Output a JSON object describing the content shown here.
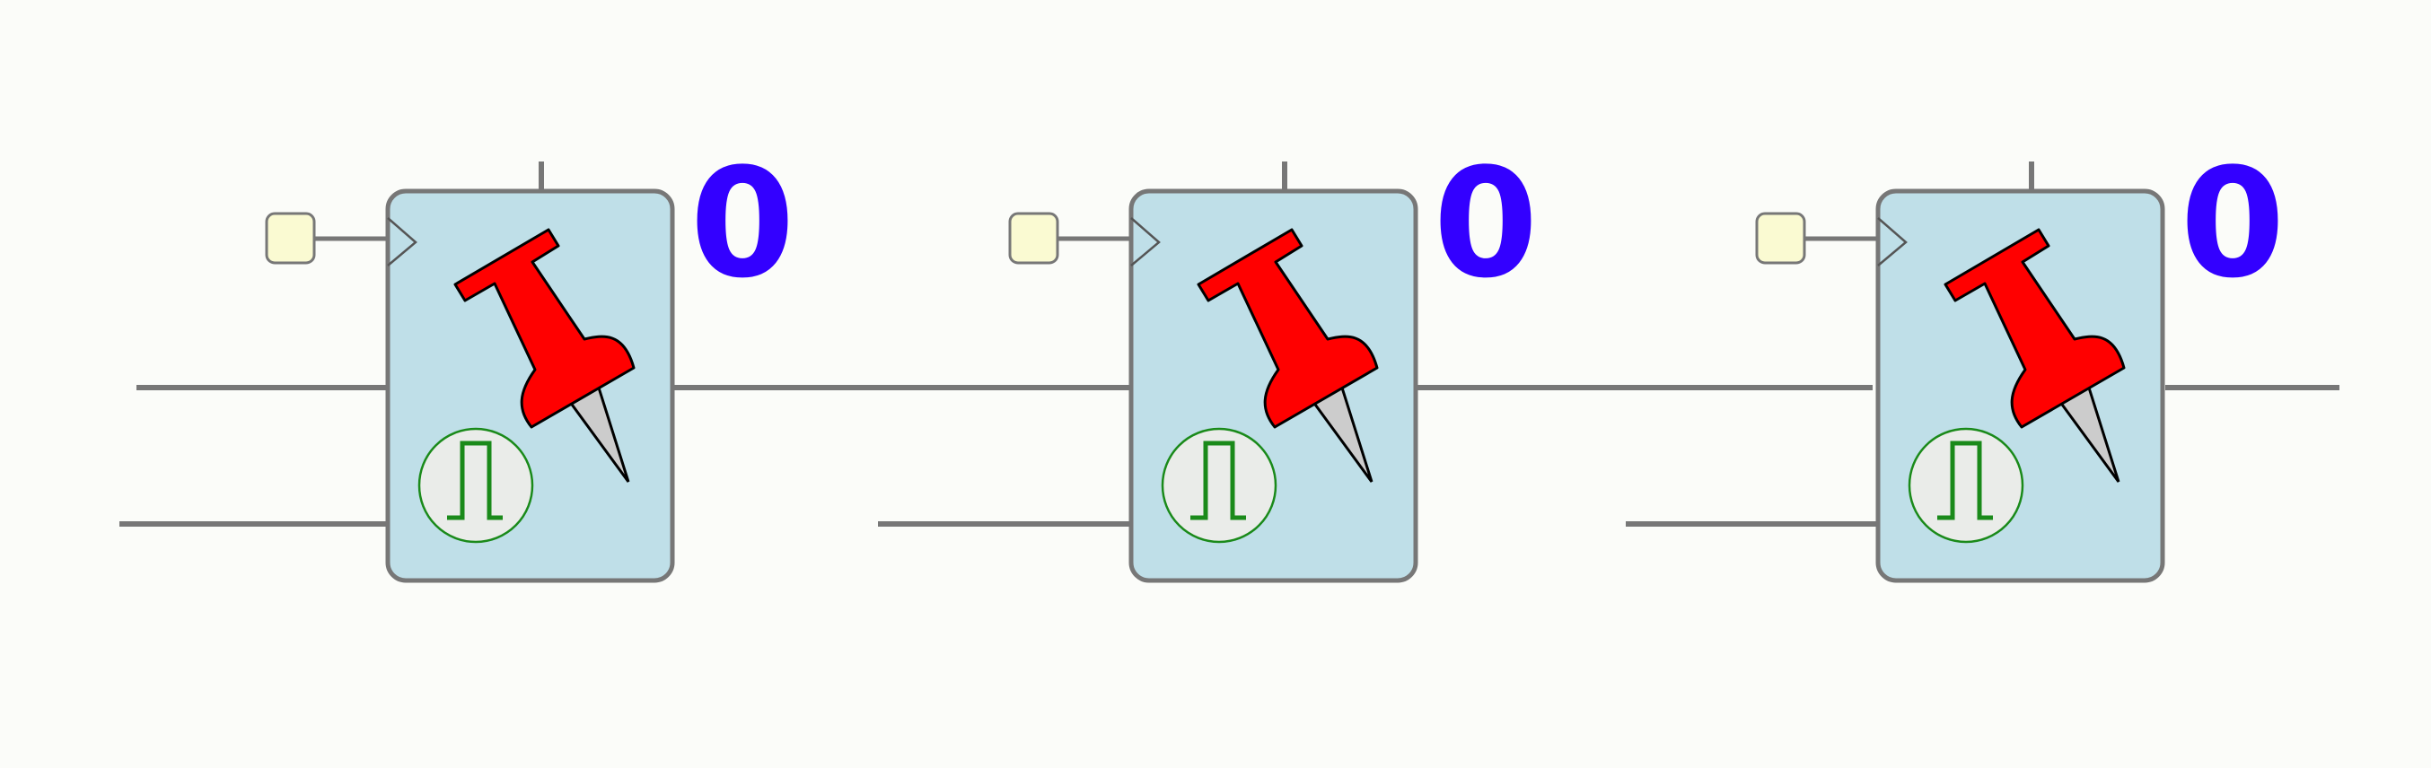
{
  "colors": {
    "background": "#fbfcf9",
    "wire": "#777777",
    "block_fill": "#bfdfe8",
    "block_border": "#777777",
    "pin_red": "#ff0000",
    "pin_needle": "#cccccc",
    "pulse_circle_fill": "#eaece9",
    "pulse_green": "#1a8a1a",
    "port_fill": "#fafad2",
    "value_text": "#3300ff"
  },
  "blocks": [
    {
      "name": "register-block-1",
      "value": "0",
      "icons": [
        "pushpin-icon",
        "clock-pulse-icon",
        "clock-input-triangle-icon"
      ]
    },
    {
      "name": "register-block-2",
      "value": "0",
      "icons": [
        "pushpin-icon",
        "clock-pulse-icon",
        "clock-input-triangle-icon"
      ]
    },
    {
      "name": "register-block-3",
      "value": "0",
      "icons": [
        "pushpin-icon",
        "clock-pulse-icon",
        "clock-input-triangle-icon"
      ]
    }
  ]
}
